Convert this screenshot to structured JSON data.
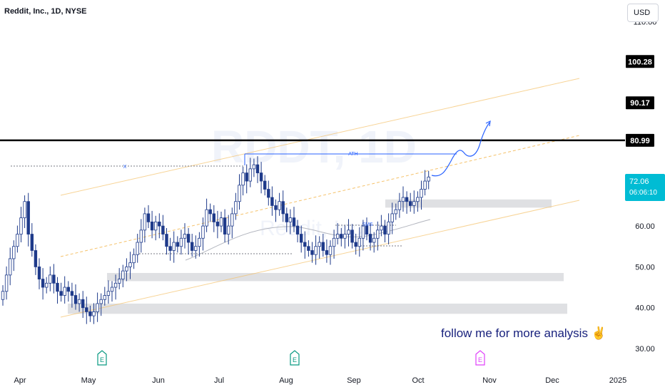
{
  "header": {
    "title": "Reddit, Inc., 1D, NYSE",
    "currency": "USD"
  },
  "watermark": {
    "symbol": "RDDT, 1D",
    "name": "Reddit, Inc."
  },
  "annotations": {
    "ath_label": "ATH",
    "x_label": "X",
    "sms_label": "SMS",
    "follow_text": "follow me for more analysis ✌"
  },
  "price_tags": [
    {
      "label": "100.28",
      "value": 100.28,
      "style": "dark"
    },
    {
      "label": "90.17",
      "value": 90.17,
      "style": "dark"
    },
    {
      "label": "80.99",
      "value": 80.99,
      "style": "dark"
    },
    {
      "label": "72.06",
      "value": 72.06,
      "style": "current",
      "sub": "06:06:10"
    }
  ],
  "earnings_markers": [
    {
      "label": "E",
      "date": "May 7",
      "color": "#089981"
    },
    {
      "label": "E",
      "date": "Aug 6",
      "color": "#089981"
    },
    {
      "label": "E",
      "date": "Oct 29",
      "color": "#e040fb"
    }
  ],
  "chart_data": {
    "type": "candlestick",
    "title": "Reddit, Inc., 1D, NYSE",
    "y_ticks": [
      30.0,
      40.0,
      50.0,
      60.0,
      110.0
    ],
    "y_tick_labels": [
      "30.00",
      "40.00",
      "50.00",
      "60.00",
      "110.00"
    ],
    "ylim": [
      28,
      112
    ],
    "x_ticks": [
      "Apr",
      "May",
      "Jun",
      "Jul",
      "Aug",
      "Sep",
      "Oct",
      "Nov",
      "Dec",
      "2025"
    ],
    "horizontal_line": 80.99,
    "close": [
      44,
      48,
      52,
      55,
      58,
      62,
      66,
      58,
      54,
      50,
      47,
      45,
      46,
      48,
      46,
      44,
      43,
      45,
      44,
      43,
      41,
      42,
      40,
      39,
      38,
      39,
      41,
      42,
      43,
      44,
      45,
      46,
      47,
      49,
      50,
      51,
      53,
      56,
      59,
      63,
      61,
      59,
      61,
      60,
      58,
      55,
      54,
      56,
      55,
      57,
      58,
      56,
      54,
      55,
      57,
      60,
      64,
      63,
      61,
      60,
      62,
      58,
      60,
      63,
      66,
      70,
      73,
      71,
      74,
      75,
      73,
      71,
      69,
      67,
      65,
      64,
      66,
      63,
      61,
      62,
      60,
      58,
      56,
      55,
      54,
      53,
      55,
      56,
      54,
      53,
      55,
      57,
      58,
      57,
      58,
      59,
      56,
      55,
      57,
      60,
      58,
      56,
      57,
      59,
      60,
      58,
      61,
      63,
      64,
      66,
      67,
      66,
      65,
      66,
      67,
      69,
      71,
      72
    ],
    "zones": [
      {
        "from": 66.5,
        "to": 64.5
      },
      {
        "from": 48.5,
        "to": 46.5
      },
      {
        "from": 41,
        "to": 38.5
      }
    ]
  }
}
